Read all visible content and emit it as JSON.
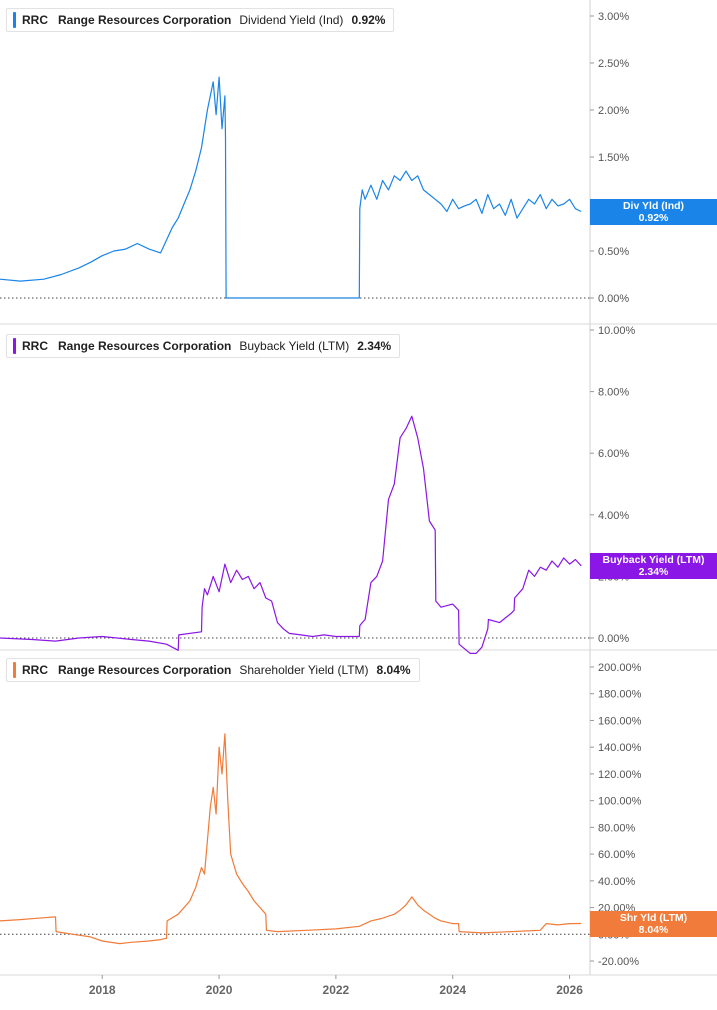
{
  "x_ticks": [
    "2018",
    "2020",
    "2022",
    "2024",
    "2026"
  ],
  "chart_data": [
    {
      "type": "line",
      "ticker": "RRC",
      "company": "Range Resources Corporation",
      "metric": "Dividend Yield (Ind)",
      "current_value_label": "0.92%",
      "tag_label": "Div Yld (Ind)",
      "color": "#1a84e8",
      "ylim": [
        -0.0,
        3.15
      ],
      "yticks": [
        0.0,
        0.5,
        1.0,
        1.5,
        2.0,
        2.5,
        3.0
      ],
      "ytick_labels": [
        "0.00%",
        "0.50%",
        "1.00%",
        "1.50%",
        "2.00%",
        "2.50%",
        "3.00%"
      ],
      "xlim": [
        2016.25,
        2026.35
      ],
      "series": [
        {
          "x": [
            2016.25,
            2016.6,
            2017.0,
            2017.3,
            2017.6,
            2017.8,
            2018.0,
            2018.2,
            2018.4,
            2018.6,
            2018.8,
            2019.0,
            2019.2,
            2019.3,
            2019.4,
            2019.5,
            2019.6,
            2019.7,
            2019.8,
            2019.9,
            2019.95,
            2020.0,
            2020.05,
            2020.1,
            2020.11,
            2020.12,
            2022.4,
            2022.41,
            2022.45,
            2022.5,
            2022.6,
            2022.7,
            2022.8,
            2022.9,
            2023.0,
            2023.1,
            2023.2,
            2023.3,
            2023.4,
            2023.5,
            2023.6,
            2023.7,
            2023.8,
            2023.9,
            2024.0,
            2024.1,
            2024.2,
            2024.3,
            2024.4,
            2024.5,
            2024.6,
            2024.7,
            2024.8,
            2024.9,
            2025.0,
            2025.1,
            2025.2,
            2025.3,
            2025.4,
            2025.5,
            2025.6,
            2025.7,
            2025.8,
            2025.9,
            2026.0,
            2026.1,
            2026.2
          ],
          "y": [
            0.2,
            0.18,
            0.2,
            0.25,
            0.32,
            0.38,
            0.45,
            0.5,
            0.52,
            0.58,
            0.52,
            0.48,
            0.75,
            0.85,
            1.0,
            1.15,
            1.35,
            1.6,
            2.0,
            2.3,
            1.95,
            2.35,
            1.8,
            2.15,
            1.7,
            0.0,
            0.0,
            0.95,
            1.15,
            1.05,
            1.2,
            1.05,
            1.25,
            1.15,
            1.3,
            1.25,
            1.35,
            1.25,
            1.3,
            1.15,
            1.1,
            1.05,
            1.0,
            0.92,
            1.05,
            0.95,
            0.98,
            1.0,
            1.05,
            0.9,
            1.1,
            0.95,
            1.0,
            0.88,
            1.05,
            0.85,
            0.95,
            1.05,
            1.0,
            1.1,
            0.95,
            1.05,
            0.98,
            1.0,
            1.05,
            0.95,
            0.92
          ]
        }
      ]
    },
    {
      "type": "line",
      "ticker": "RRC",
      "company": "Range Resources Corporation",
      "metric": "Buyback Yield (LTM)",
      "current_value_label": "2.34%",
      "tag_label": "Buyback Yield (LTM)",
      "color": "#8a17e6",
      "ylim": [
        -1.4,
        10.0
      ],
      "yticks": [
        0.0,
        2.0,
        4.0,
        6.0,
        8.0,
        10.0
      ],
      "ytick_labels": [
        "0.00%",
        "2.00%",
        "4.00%",
        "6.00%",
        "8.00%",
        "10.00%"
      ],
      "xlim": [
        2016.25,
        2026.35
      ],
      "series": [
        {
          "x": [
            2016.25,
            2016.8,
            2017.2,
            2017.6,
            2018.0,
            2018.5,
            2018.8,
            2019.1,
            2019.3,
            2019.31,
            2019.7,
            2019.71,
            2019.75,
            2019.8,
            2019.9,
            2020.0,
            2020.1,
            2020.2,
            2020.3,
            2020.4,
            2020.5,
            2020.6,
            2020.7,
            2020.8,
            2020.9,
            2021.0,
            2021.1,
            2021.2,
            2021.4,
            2021.6,
            2021.8,
            2022.0,
            2022.2,
            2022.4,
            2022.41,
            2022.45,
            2022.5,
            2022.6,
            2022.7,
            2022.8,
            2022.9,
            2023.0,
            2023.1,
            2023.2,
            2023.3,
            2023.4,
            2023.5,
            2023.6,
            2023.7,
            2023.71,
            2023.8,
            2024.0,
            2024.1,
            2024.11,
            2024.3,
            2024.4,
            2024.5,
            2024.6,
            2024.61,
            2024.8,
            2025.0,
            2025.05,
            2025.06,
            2025.2,
            2025.3,
            2025.4,
            2025.5,
            2025.6,
            2025.7,
            2025.8,
            2025.9,
            2026.0,
            2026.1,
            2026.2
          ],
          "y": [
            0.0,
            -0.05,
            -0.1,
            0.0,
            0.05,
            -0.05,
            -0.1,
            -0.2,
            -0.4,
            0.1,
            0.2,
            1.0,
            1.6,
            1.4,
            2.0,
            1.5,
            2.4,
            1.8,
            2.2,
            1.9,
            2.0,
            1.6,
            1.8,
            1.3,
            1.2,
            0.5,
            0.3,
            0.15,
            0.1,
            0.05,
            0.1,
            0.05,
            0.05,
            0.05,
            0.4,
            0.5,
            0.6,
            1.8,
            2.0,
            2.5,
            4.5,
            5.0,
            6.5,
            6.8,
            7.2,
            6.5,
            5.5,
            3.8,
            3.5,
            1.2,
            1.0,
            1.1,
            0.9,
            -0.2,
            -0.5,
            -0.5,
            -0.3,
            0.3,
            0.6,
            0.5,
            0.8,
            0.9,
            1.3,
            1.6,
            2.2,
            2.0,
            2.3,
            2.2,
            2.5,
            2.3,
            2.6,
            2.4,
            2.55,
            2.34
          ]
        }
      ]
    },
    {
      "type": "line",
      "ticker": "RRC",
      "company": "Range Resources Corporation",
      "metric": "Shareholder Yield (LTM)",
      "current_value_label": "8.04%",
      "tag_label": "Shr Yld (LTM)",
      "color": "#f07b3a",
      "ylim": [
        -25.0,
        215.0
      ],
      "yticks": [
        -20,
        0,
        20,
        40,
        60,
        80,
        100,
        120,
        140,
        160,
        180,
        200
      ],
      "ytick_labels": [
        "-20.00%",
        "0.00%",
        "20.00%",
        "40.00%",
        "60.00%",
        "80.00%",
        "100.00%",
        "120.00%",
        "140.00%",
        "160.00%",
        "180.00%",
        "200.00%"
      ],
      "xlim": [
        2016.25,
        2026.35
      ],
      "series": [
        {
          "x": [
            2016.25,
            2016.6,
            2016.9,
            2017.2,
            2017.21,
            2017.5,
            2017.8,
            2018.0,
            2018.3,
            2018.5,
            2018.8,
            2019.0,
            2019.1,
            2019.11,
            2019.3,
            2019.5,
            2019.6,
            2019.7,
            2019.75,
            2019.8,
            2019.85,
            2019.9,
            2019.95,
            2020.0,
            2020.05,
            2020.1,
            2020.15,
            2020.2,
            2020.3,
            2020.4,
            2020.5,
            2020.6,
            2020.7,
            2020.8,
            2020.81,
            2021.0,
            2021.5,
            2022.0,
            2022.4,
            2022.6,
            2022.8,
            2023.0,
            2023.1,
            2023.2,
            2023.3,
            2023.4,
            2023.5,
            2023.6,
            2023.7,
            2023.8,
            2024.0,
            2024.1,
            2024.11,
            2024.5,
            2025.0,
            2025.5,
            2025.6,
            2025.8,
            2026.0,
            2026.2
          ],
          "y": [
            10,
            11,
            12,
            13,
            2,
            0,
            -2,
            -5,
            -7,
            -6,
            -5,
            -4,
            -3,
            10,
            15,
            25,
            35,
            50,
            45,
            70,
            95,
            110,
            90,
            140,
            120,
            150,
            100,
            60,
            45,
            38,
            32,
            25,
            20,
            15,
            3,
            2,
            3,
            4,
            6,
            10,
            12,
            15,
            18,
            22,
            28,
            22,
            18,
            15,
            12,
            10,
            8,
            8,
            2,
            1,
            2,
            3,
            8,
            7,
            8,
            8.04
          ]
        }
      ]
    }
  ]
}
